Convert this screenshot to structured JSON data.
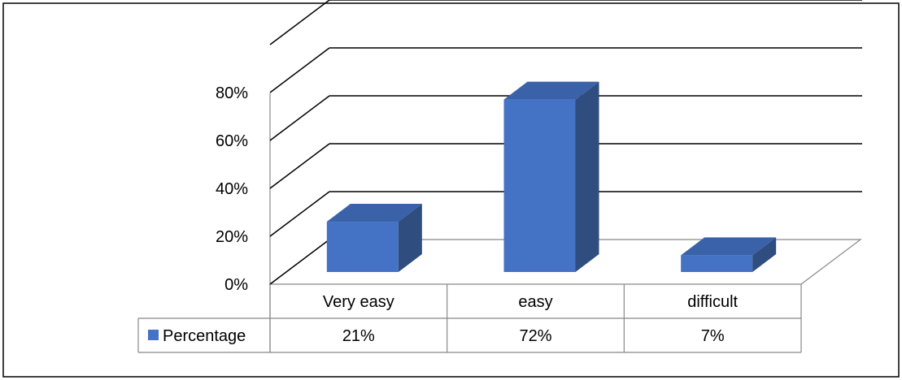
{
  "chart_data": {
    "type": "bar",
    "categories": [
      "Very easy",
      "easy",
      "difficult"
    ],
    "series": [
      {
        "name": "Percentage",
        "values": [
          21,
          72,
          7
        ],
        "value_labels": [
          "21%",
          "72%",
          "7%"
        ],
        "color": "#4472C4"
      }
    ],
    "ylim": [
      0,
      80
    ],
    "yticks": [
      0,
      20,
      40,
      60,
      80
    ],
    "ytick_labels": [
      "0%",
      "20%",
      "40%",
      "60%",
      "80%"
    ],
    "grid": true,
    "legend": "data-table",
    "colors": {
      "bar_front": "#4472C4",
      "bar_side": "#2F4D7E",
      "bar_top": "#3A62A8",
      "gridline": "#000000",
      "border": "#000000"
    }
  }
}
